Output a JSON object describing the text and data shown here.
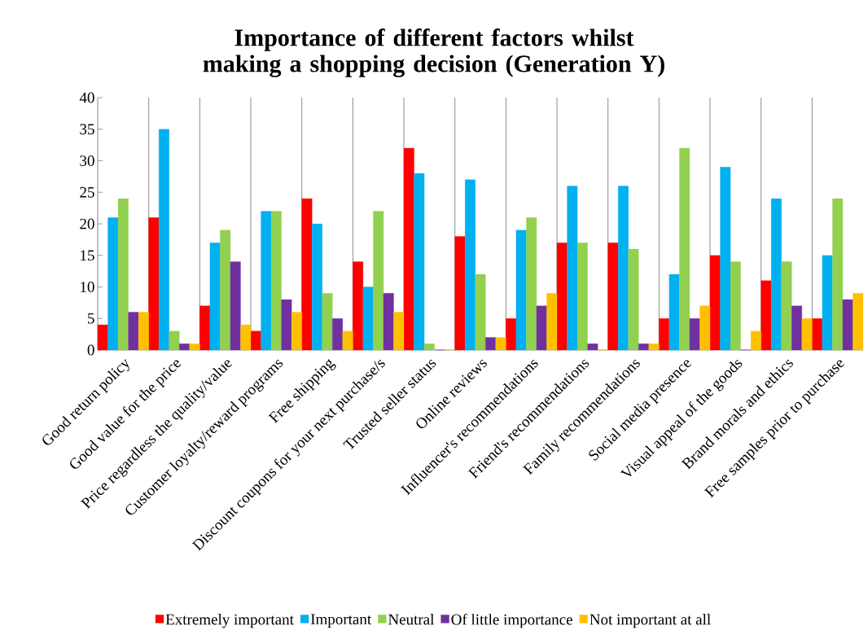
{
  "chart_data": {
    "type": "bar",
    "title": "Importance of different factors whilst making a shopping decision (Generation Y)",
    "categories": [
      "Good return policy",
      "Good value for the price",
      "Price regardless the quality/value",
      "Customer loyalty/reward programs",
      "Free shipping",
      "Discount coupons for your next purchase/s",
      "Trusted seller status",
      "Online reviews",
      "Influencer's recommendations",
      "Friend's recommendations",
      "Family recommendations",
      "Social media presence",
      "Visual appeal of the goods",
      "Brand morals and ethics",
      "Free samples prior to purchase"
    ],
    "series": [
      {
        "name": "Extremely important",
        "color": "#ff0000",
        "values": [
          4,
          21,
          7,
          3,
          24,
          14,
          32,
          18,
          5,
          17,
          17,
          5,
          15,
          11,
          5
        ]
      },
      {
        "name": "Important",
        "color": "#00b0f0",
        "values": [
          21,
          35,
          17,
          22,
          20,
          10,
          28,
          27,
          19,
          26,
          26,
          12,
          29,
          24,
          15
        ]
      },
      {
        "name": "Neutral",
        "color": "#92d050",
        "values": [
          24,
          3,
          19,
          22,
          9,
          22,
          1,
          12,
          21,
          17,
          16,
          32,
          14,
          14,
          24
        ]
      },
      {
        "name": "Of little importance",
        "color": "#7030a0",
        "values": [
          6,
          1,
          14,
          8,
          5,
          9,
          0,
          2,
          7,
          1,
          1,
          5,
          0,
          7,
          8
        ]
      },
      {
        "name": "Not important at all",
        "color": "#ffc000",
        "values": [
          6,
          1,
          4,
          6,
          3,
          6,
          0,
          2,
          9,
          0,
          1,
          7,
          3,
          5,
          9
        ]
      }
    ],
    "ylim": [
      0,
      40
    ],
    "yticks": [
      0,
      5,
      10,
      15,
      20,
      25,
      30,
      35,
      40
    ],
    "grid": "x",
    "legend": "bottom"
  }
}
